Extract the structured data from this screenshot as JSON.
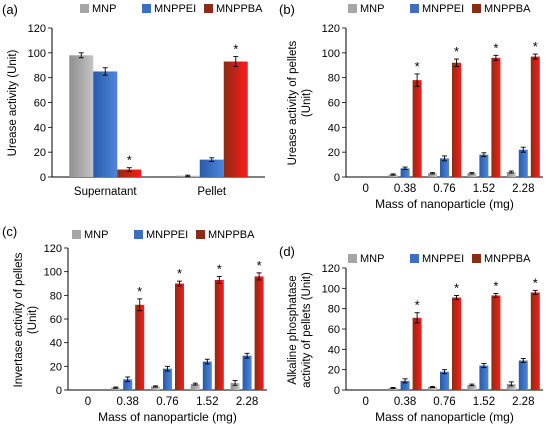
{
  "colors": {
    "MNP": "#a6a6a6",
    "MNPPEI": "#3a6fc4",
    "MNPPBA_dark": "#8b2c14",
    "MNPPBA_bright": "#ff1a1a"
  },
  "shared": {
    "xlabel": "Mass of nanoparticle (mg)",
    "star": "*"
  },
  "chart_data": [
    {
      "type": "bar",
      "panel": "(a)",
      "ylabel": "Urease activity (Unit)",
      "ylim": [
        0,
        120
      ],
      "yticks": [
        0,
        20,
        40,
        60,
        80,
        100,
        120
      ],
      "legend": [
        "MNP",
        "MNPPEI",
        "MNPPBA"
      ],
      "legend_placement": "top",
      "categories": [
        "Supernatant",
        "Pellet"
      ],
      "series": [
        {
          "name": "MNP",
          "values": [
            98,
            1
          ],
          "errors": [
            2,
            0.5
          ]
        },
        {
          "name": "MNPPEI",
          "values": [
            85,
            14
          ],
          "errors": [
            3,
            1.5
          ]
        },
        {
          "name": "MNPPBA",
          "values": [
            6,
            93
          ],
          "errors": [
            1.5,
            4
          ]
        }
      ],
      "significance": [
        {
          "category": "Supernatant",
          "series": "MNPPBA",
          "label": "*"
        },
        {
          "category": "Pellet",
          "series": "MNPPBA",
          "label": "*"
        }
      ]
    },
    {
      "type": "bar",
      "panel": "(b)",
      "ylabel": [
        "Urease activity of pellets",
        "(Unit)"
      ],
      "xlabel": "Mass of nanoparticle (mg)",
      "ylim": [
        0,
        120
      ],
      "yticks": [
        0,
        20,
        40,
        60,
        80,
        100,
        120
      ],
      "legend": [
        "MNP",
        "MNPPEI",
        "MNPPBA"
      ],
      "legend_placement": "top",
      "categories": [
        "0",
        "0.38",
        "0.76",
        "1.52",
        "2.28"
      ],
      "series": [
        {
          "name": "MNP",
          "values": [
            0,
            2,
            3,
            3,
            4
          ],
          "errors": [
            0,
            0.5,
            0.5,
            0.5,
            0.8
          ]
        },
        {
          "name": "MNPPEI",
          "values": [
            0,
            7,
            15,
            18,
            22
          ],
          "errors": [
            0,
            1,
            2,
            1.5,
            2
          ]
        },
        {
          "name": "MNPPBA",
          "values": [
            0,
            78,
            92,
            96,
            97
          ],
          "errors": [
            0,
            5,
            3,
            2,
            2
          ]
        }
      ],
      "stars_on": [
        "0.38",
        "0.76",
        "1.52",
        "2.28"
      ]
    },
    {
      "type": "bar",
      "panel": "(c)",
      "ylabel": [
        "Invertase activity of pellets",
        "(Unit)"
      ],
      "xlabel": "Mass of nanoparticle (mg)",
      "ylim": [
        0,
        120
      ],
      "yticks": [
        0,
        20,
        40,
        60,
        80,
        100,
        120
      ],
      "legend": [
        "MNP",
        "MNPPEI",
        "MNPPBA"
      ],
      "legend_placement": "top",
      "categories": [
        "0",
        "0.38",
        "0.76",
        "1.52",
        "2.28"
      ],
      "series": [
        {
          "name": "MNP",
          "values": [
            0,
            2,
            3,
            5,
            6
          ],
          "errors": [
            0,
            0.5,
            0.5,
            0.8,
            2
          ]
        },
        {
          "name": "MNPPEI",
          "values": [
            0,
            9,
            18,
            24,
            29
          ],
          "errors": [
            0,
            2,
            2,
            2,
            2
          ]
        },
        {
          "name": "MNPPBA",
          "values": [
            0,
            72,
            90,
            93,
            96
          ],
          "errors": [
            0,
            5,
            2,
            3,
            3
          ]
        }
      ],
      "stars_on": [
        "0.38",
        "0.76",
        "1.52",
        "2.28"
      ]
    },
    {
      "type": "bar",
      "panel": "(d)",
      "ylabel": [
        "Alkaline phosphatase",
        "activity of pellets (Unit)"
      ],
      "xlabel": "Mass of nanoparticle (mg)",
      "ylim": [
        0,
        120
      ],
      "yticks": [
        0,
        20,
        40,
        60,
        80,
        100,
        120
      ],
      "legend": [
        "MNP",
        "MNPPEI",
        "MNPPBA"
      ],
      "legend_placement": "top",
      "categories": [
        "0",
        "0.38",
        "0.76",
        "1.52",
        "2.28"
      ],
      "series": [
        {
          "name": "MNP",
          "values": [
            0,
            2,
            3,
            5,
            6
          ],
          "errors": [
            0,
            0.5,
            0.5,
            0.8,
            2
          ]
        },
        {
          "name": "MNPPEI",
          "values": [
            0,
            9,
            18,
            24,
            29
          ],
          "errors": [
            0,
            2,
            2,
            2,
            2
          ]
        },
        {
          "name": "MNPPBA",
          "values": [
            0,
            71,
            91,
            93,
            96
          ],
          "errors": [
            0,
            5,
            2,
            2,
            2
          ]
        }
      ],
      "stars_on": [
        "0.38",
        "0.76",
        "1.52",
        "2.28"
      ]
    }
  ]
}
